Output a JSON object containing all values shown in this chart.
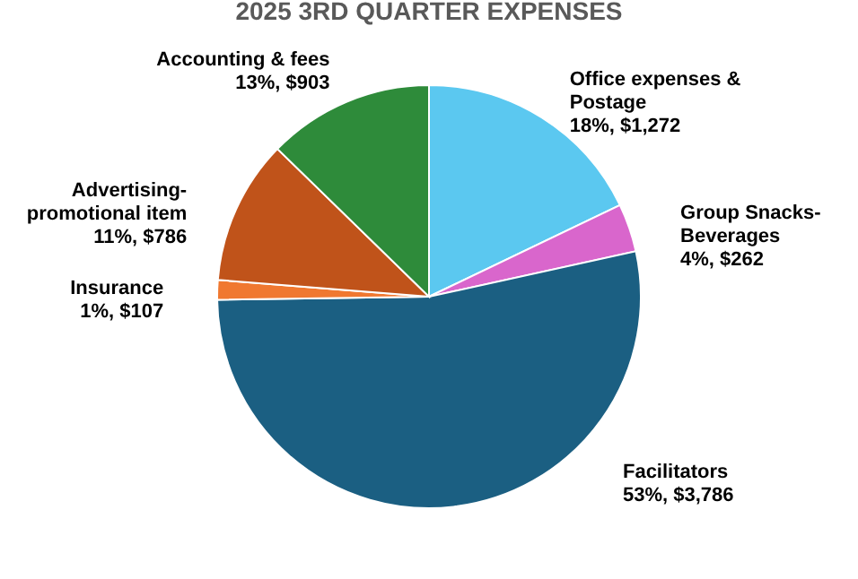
{
  "chart_data": {
    "type": "pie",
    "title": "2025 3RD QUARTER EXPENSES",
    "categories": [
      "Office expenses & Postage",
      "Group Snacks-Beverages",
      "Facilitators",
      "Insurance",
      "Advertising-promotional item",
      "Accounting & fees"
    ],
    "values": [
      1272,
      262,
      3786,
      107,
      786,
      903
    ],
    "colors": [
      "#5bc8f0",
      "#d966cc",
      "#1b5f82",
      "#f07830",
      "#c0531a",
      "#2e8b3a"
    ],
    "value_labels": [
      "18%, $1,272",
      "4%, $262",
      "53%, $3,786",
      "1%, $107",
      "11%, $786",
      "13%, $903"
    ],
    "legend": false
  }
}
